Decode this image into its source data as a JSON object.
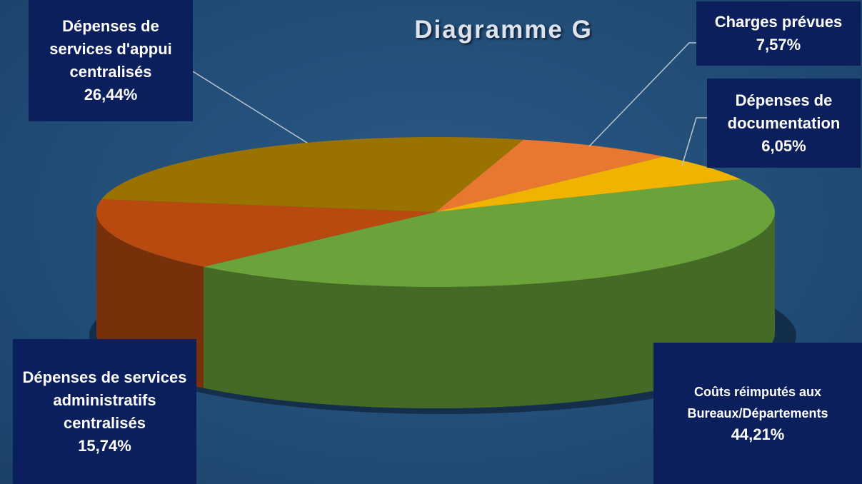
{
  "chart_data": {
    "type": "pie",
    "title": "Diagramme G",
    "categories": [
      "Charges prévues",
      "Dépenses de documentation",
      "Coûts réimputés aux Bureaux/Départements",
      "Dépenses de services administratifs centralisés",
      "Dépenses de services d'appui centralisés"
    ],
    "values": [
      7.57,
      6.05,
      44.21,
      15.74,
      26.44
    ],
    "value_labels": [
      "7,57%",
      "6,05%",
      "44,21%",
      "15,74%",
      "26,44%"
    ],
    "colors": [
      "#e8782f",
      "#f0b400",
      "#6aa33a",
      "#b84a10",
      "#9a7200"
    ]
  }
}
